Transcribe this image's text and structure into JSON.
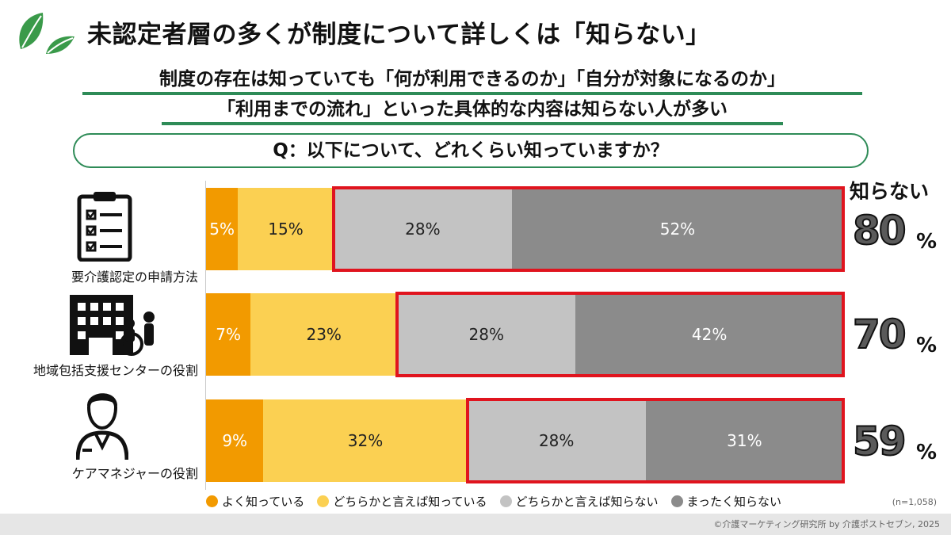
{
  "title": "未認定者層の多くが制度について詳しくは「知らない」",
  "subtitle_line1": "制度の存在は知っていても「何が利用できるのか」「自分が対象になるのか」",
  "subtitle_line2": "「利用までの流れ」といった具体的な内容は知らない人が多い",
  "question": "Q：以下について、どれくらい知っていますか？",
  "unknown_header": "知らない",
  "unknown_pct_sign": "%",
  "sample_size": "(n=1,058)",
  "footer": "©介護マーケティング研究所 by 介護ポストセブン, 2025",
  "colors": {
    "know_well": "#f29a00",
    "somewhat_know": "#fbd052",
    "somewhat_dont_know": "#c3c3c3",
    "dont_know_at_all": "#8b8b8b",
    "highlight": "#e0141e",
    "accent_green": "#2e8b57"
  },
  "icons": [
    "clipboard-checklist-icon",
    "care-facility-wheelchair-icon",
    "care-manager-person-icon",
    "leaf-logo-icon"
  ],
  "chart_data": {
    "type": "bar",
    "orientation": "horizontal",
    "stacked": true,
    "normalized": true,
    "xlim": [
      0,
      100
    ],
    "categories": [
      "要介護認定の申請方法",
      "地域包括支援センターの役割",
      "ケアマネジャーの役割"
    ],
    "series": [
      {
        "name": "よく知っている",
        "values": [
          5,
          7,
          9
        ],
        "labels": [
          "5%",
          "7%",
          "9%"
        ]
      },
      {
        "name": "どちらかと言えば知っている",
        "values": [
          15,
          23,
          32
        ],
        "labels": [
          "15%",
          "23%",
          "32%"
        ]
      },
      {
        "name": "どちらかと言えば知らない",
        "values": [
          28,
          28,
          28
        ],
        "labels": [
          "28%",
          "28%",
          "28%"
        ]
      },
      {
        "name": "まったく知らない",
        "values": [
          52,
          42,
          31
        ],
        "labels": [
          "52%",
          "42%",
          "31%"
        ]
      }
    ],
    "unknown_totals": [
      80,
      70,
      59
    ],
    "legend_position": "bottom"
  }
}
